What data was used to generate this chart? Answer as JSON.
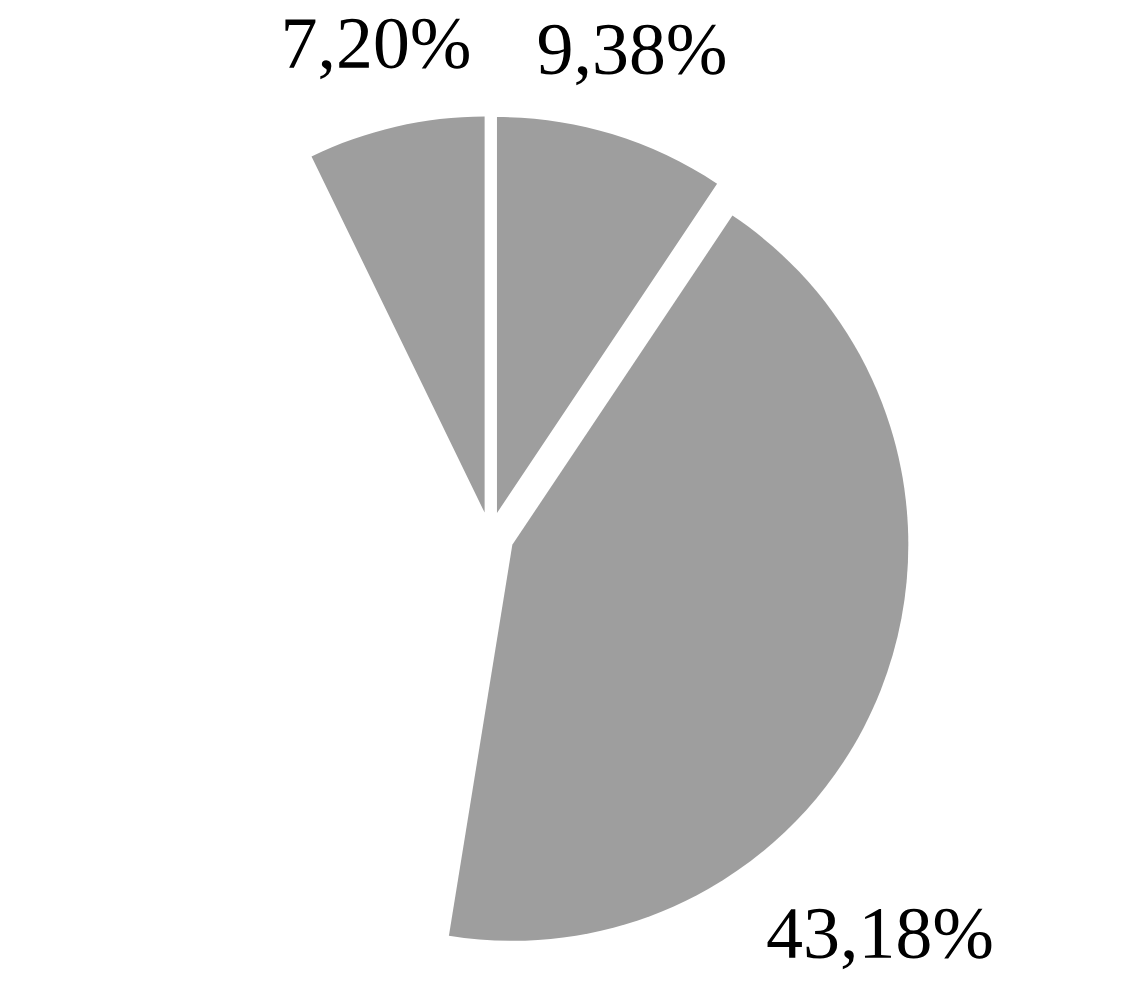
{
  "chart_data": {
    "type": "pie",
    "categories": [
      null,
      null,
      null
    ],
    "values": [
      7.2,
      9.38,
      43.18
    ],
    "colors": [
      "#9e9e9e",
      "#9e9e9e",
      "#9e9e9e"
    ],
    "value_labels": [
      "7,20%",
      "9,38%",
      "43,18%"
    ]
  }
}
